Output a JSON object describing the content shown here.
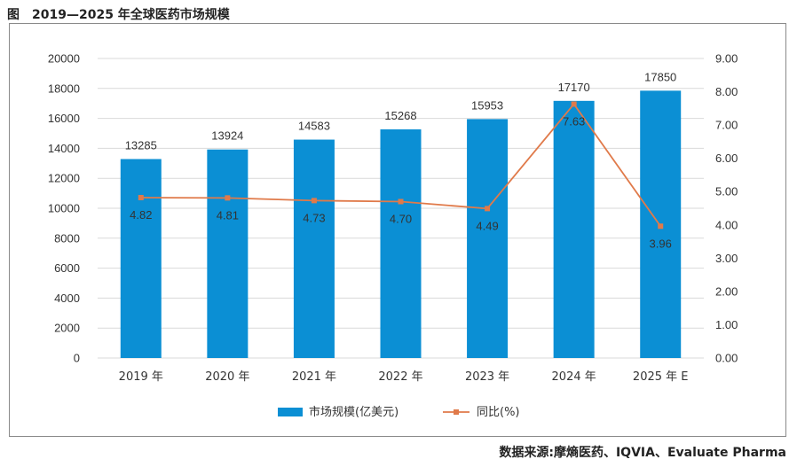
{
  "figure_title": "图　2019—2025 年全球医药市场规模",
  "source": "数据来源:摩熵医药、IQVIA、Evaluate Pharma",
  "colors": {
    "bar": "#0b8fd4",
    "line": "#e07a4a",
    "grid": "#d9d9d9"
  },
  "chart_data": {
    "type": "bar",
    "categories": [
      "2019 年",
      "2020 年",
      "2021 年",
      "2022 年",
      "2023 年",
      "2024 年",
      "2025 年 E"
    ],
    "series": [
      {
        "name": "市场规模(亿美元)",
        "type": "bar",
        "axis": "left",
        "values": [
          13285,
          13924,
          14583,
          15268,
          15953,
          17170,
          17850
        ]
      },
      {
        "name": "同比(%)",
        "type": "line",
        "axis": "right",
        "values": [
          4.82,
          4.81,
          4.73,
          4.7,
          4.49,
          7.63,
          3.96
        ]
      }
    ],
    "ylim_left": [
      0,
      20000
    ],
    "yticks_left": [
      "0",
      "2000",
      "4000",
      "6000",
      "8000",
      "10000",
      "12000",
      "14000",
      "16000",
      "18000",
      "20000"
    ],
    "ylim_right": [
      0,
      9
    ],
    "yticks_right": [
      "0.00",
      "1.00",
      "2.00",
      "3.00",
      "4.00",
      "5.00",
      "6.00",
      "7.00",
      "8.00",
      "9.00"
    ],
    "grid": true,
    "legend_position": "bottom"
  }
}
